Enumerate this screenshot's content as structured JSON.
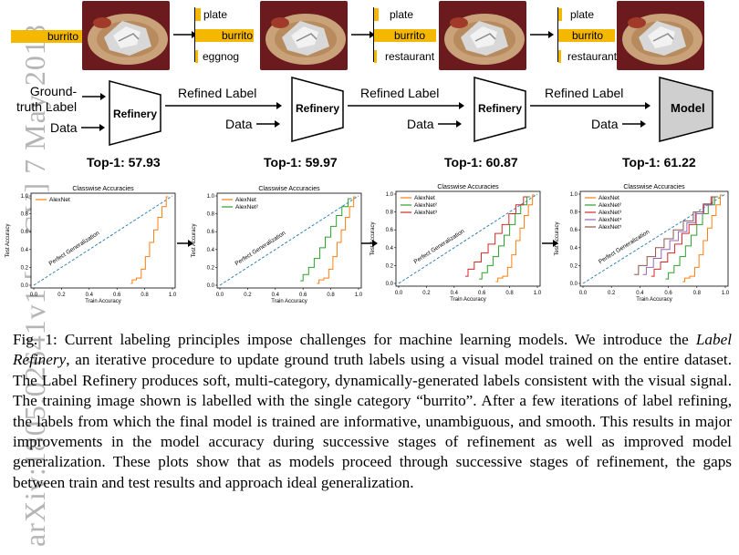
{
  "watermark": "arXiv:1805.02641v1  [cs.CV]  7 May 2018",
  "stages": [
    {
      "labels": [
        "burrito"
      ],
      "values": [
        1.0
      ]
    },
    {
      "labels": [
        "plate",
        "burrito",
        "eggnog"
      ],
      "values": [
        0.05,
        0.62,
        0.02
      ]
    },
    {
      "labels": [
        "plate",
        "burrito",
        "restaurant"
      ],
      "values": [
        0.03,
        0.75,
        0.02
      ]
    },
    {
      "labels": [
        "plate",
        "burrito",
        "restaurant"
      ],
      "values": [
        0.02,
        0.77,
        0.02
      ]
    }
  ],
  "flow": {
    "ground_truth": "Ground-\ntruth Label",
    "data": "Data",
    "refined_label": "Refined Label",
    "refinery": "Refinery",
    "model": "Model",
    "top1": [
      "Top-1: 57.93",
      "Top-1: 59.97",
      "Top-1: 60.87",
      "Top-1: 61.22"
    ]
  },
  "chart_data": [
    {
      "type": "line",
      "title": "Classwise Accuracies",
      "xlabel": "Train Accuracy",
      "ylabel": "Test Accuracy",
      "xlim": [
        0,
        1.0
      ],
      "ylim": [
        0,
        1.0
      ],
      "xticks": [
        "0.0",
        "0.2",
        "0.4",
        "0.6",
        "0.8",
        "1.0"
      ],
      "yticks": [
        "0.0",
        "0.2",
        "0.4",
        "0.6",
        "0.8",
        "1.0"
      ],
      "annotation": "Perfect Generalization",
      "legend_position": "top-left",
      "series": [
        {
          "name": "AlexNet",
          "color": "#ff7f0e",
          "x": [
            0.7,
            0.72,
            0.76,
            0.79,
            0.82,
            0.85,
            0.88,
            0.91,
            0.94,
            0.97
          ],
          "y": [
            0.02,
            0.06,
            0.08,
            0.18,
            0.32,
            0.48,
            0.62,
            0.76,
            0.88,
            0.99
          ]
        }
      ]
    },
    {
      "type": "line",
      "title": "Classwise Accuracies",
      "xlabel": "Train Accuracy",
      "ylabel": "Test Accuracy",
      "xlim": [
        0,
        1.0
      ],
      "ylim": [
        0,
        1.0
      ],
      "xticks": [
        "0.0",
        "0.2",
        "0.4",
        "0.6",
        "0.8",
        "1.0"
      ],
      "yticks": [
        "0.0",
        "0.2",
        "0.4",
        "0.6",
        "0.8",
        "1.0"
      ],
      "annotation": "Perfect Generalization",
      "legend_position": "top-left",
      "series": [
        {
          "name": "AlexNet",
          "color": "#ff7f0e",
          "x": [
            0.7,
            0.73,
            0.77,
            0.8,
            0.83,
            0.86,
            0.89,
            0.92,
            0.95,
            0.98
          ],
          "y": [
            0.02,
            0.06,
            0.08,
            0.18,
            0.32,
            0.48,
            0.62,
            0.76,
            0.88,
            0.99
          ]
        },
        {
          "name": "AlexNet²",
          "color": "#2ca02c",
          "x": [
            0.58,
            0.62,
            0.66,
            0.7,
            0.74,
            0.78,
            0.82,
            0.86,
            0.9,
            0.95
          ],
          "y": [
            0.05,
            0.12,
            0.2,
            0.3,
            0.42,
            0.54,
            0.66,
            0.78,
            0.88,
            0.97
          ]
        }
      ]
    },
    {
      "type": "line",
      "title": "Classwise Accuracies",
      "xlabel": "Train Accuracy",
      "ylabel": "Test Accuracy",
      "xlim": [
        0,
        1.0
      ],
      "ylim": [
        0,
        1.0
      ],
      "xticks": [
        "0.0",
        "0.2",
        "0.4",
        "0.6",
        "0.8",
        "1.0"
      ],
      "yticks": [
        "0.0",
        "0.2",
        "0.4",
        "0.6",
        "0.8",
        "1.0"
      ],
      "annotation": "Perfect Generalization",
      "legend_position": "top-left",
      "series": [
        {
          "name": "AlexNet",
          "color": "#ff7f0e",
          "x": [
            0.7,
            0.73,
            0.77,
            0.8,
            0.83,
            0.86,
            0.89,
            0.92,
            0.95,
            0.98
          ],
          "y": [
            0.02,
            0.06,
            0.08,
            0.18,
            0.32,
            0.48,
            0.62,
            0.76,
            0.88,
            0.99
          ]
        },
        {
          "name": "AlexNet²",
          "color": "#2ca02c",
          "x": [
            0.58,
            0.62,
            0.66,
            0.7,
            0.74,
            0.78,
            0.82,
            0.86,
            0.9,
            0.95
          ],
          "y": [
            0.05,
            0.12,
            0.2,
            0.3,
            0.42,
            0.54,
            0.66,
            0.78,
            0.88,
            0.97
          ]
        },
        {
          "name": "AlexNet³",
          "color": "#d62728",
          "x": [
            0.48,
            0.52,
            0.57,
            0.62,
            0.67,
            0.72,
            0.77,
            0.82,
            0.87,
            0.93
          ],
          "y": [
            0.08,
            0.16,
            0.24,
            0.34,
            0.44,
            0.56,
            0.66,
            0.78,
            0.88,
            0.97
          ]
        }
      ]
    },
    {
      "type": "line",
      "title": "Classwise Accuracies",
      "xlabel": "Train Accuracy",
      "ylabel": "Test Accuracy",
      "xlim": [
        0,
        1.0
      ],
      "ylim": [
        0,
        1.0
      ],
      "xticks": [
        "0.0",
        "0.2",
        "0.4",
        "0.6",
        "0.8",
        "1.0"
      ],
      "yticks": [
        "0.0",
        "0.2",
        "0.4",
        "0.6",
        "0.8",
        "1.0"
      ],
      "annotation": "Perfect Generalization",
      "legend_position": "top-left",
      "series": [
        {
          "name": "AlexNet",
          "color": "#ff7f0e",
          "x": [
            0.7,
            0.73,
            0.77,
            0.8,
            0.83,
            0.86,
            0.89,
            0.92,
            0.95,
            0.98
          ],
          "y": [
            0.02,
            0.06,
            0.08,
            0.18,
            0.32,
            0.48,
            0.62,
            0.76,
            0.88,
            0.99
          ]
        },
        {
          "name": "AlexNet²",
          "color": "#2ca02c",
          "x": [
            0.58,
            0.62,
            0.66,
            0.7,
            0.74,
            0.78,
            0.82,
            0.86,
            0.9,
            0.95
          ],
          "y": [
            0.05,
            0.12,
            0.2,
            0.3,
            0.42,
            0.54,
            0.66,
            0.78,
            0.88,
            0.97
          ]
        },
        {
          "name": "AlexNet³",
          "color": "#d62728",
          "x": [
            0.48,
            0.52,
            0.57,
            0.62,
            0.67,
            0.72,
            0.77,
            0.82,
            0.87,
            0.93
          ],
          "y": [
            0.08,
            0.16,
            0.24,
            0.34,
            0.44,
            0.56,
            0.66,
            0.78,
            0.88,
            0.97
          ]
        },
        {
          "name": "AlexNet⁴",
          "color": "#9467bd",
          "x": [
            0.42,
            0.47,
            0.52,
            0.58,
            0.64,
            0.7,
            0.76,
            0.82,
            0.88,
            0.94
          ],
          "y": [
            0.1,
            0.18,
            0.28,
            0.38,
            0.48,
            0.58,
            0.68,
            0.78,
            0.88,
            0.97
          ]
        },
        {
          "name": "AlexNet⁵",
          "color": "#8c564b",
          "x": [
            0.36,
            0.42,
            0.48,
            0.54,
            0.6,
            0.67,
            0.74,
            0.81,
            0.88,
            0.94
          ],
          "y": [
            0.1,
            0.2,
            0.3,
            0.4,
            0.5,
            0.6,
            0.7,
            0.8,
            0.89,
            0.97
          ]
        }
      ]
    }
  ],
  "caption": {
    "prefix": "Fig. 1: Current labeling principles impose challenges for machine learning models. We introduce the ",
    "italic": "Label Refinery",
    "rest": ", an iterative procedure to update ground truth labels using a visual model trained on the entire dataset. The Label Refinery produces soft, multi-category, dynamically-generated labels consistent with the visual signal. The training image shown is labelled with the single category “burrito”. After a few iterations of label refining, the labels from which the final model is trained are informative, unambiguous, and smooth. This results in major improvements in the model accuracy during successive stages of refinement as well as improved model generalization. These plots show that as models proceed through successive stages of refinement, the gaps between train and test results and approach ideal generalization."
  }
}
